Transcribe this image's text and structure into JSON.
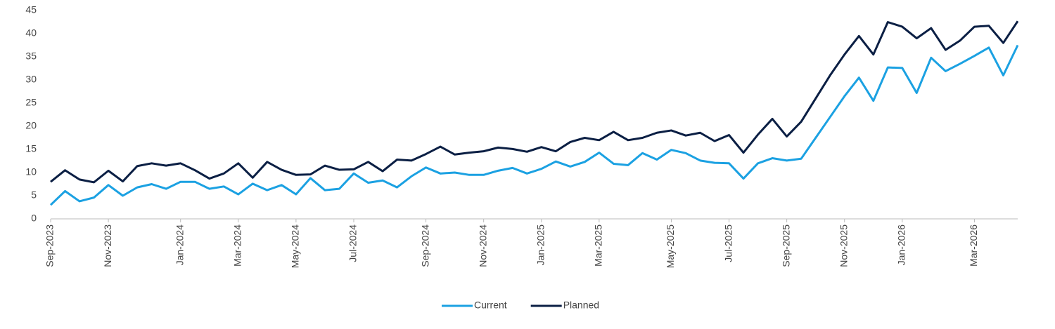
{
  "chart_data": {
    "type": "line",
    "categories": [
      "Sep-2023",
      null,
      null,
      null,
      "Nov-2023",
      null,
      null,
      null,
      null,
      "Jan-2024",
      null,
      null,
      null,
      "Mar-2024",
      null,
      null,
      null,
      "May-2024",
      null,
      null,
      null,
      "Jul-2024",
      null,
      null,
      null,
      null,
      "Sep-2024",
      null,
      null,
      null,
      "Nov-2024",
      null,
      null,
      null,
      "Jan-2025",
      null,
      null,
      null,
      "Mar-2025",
      null,
      null,
      null,
      null,
      "May-2025",
      null,
      null,
      null,
      "Jul-2025",
      null,
      null,
      null,
      "Sep-2025",
      null,
      null,
      null,
      "Nov-2025",
      null,
      null,
      null,
      "Jan-2026",
      null,
      null,
      null,
      null,
      "Mar-2026",
      null,
      null,
      null
    ],
    "series": [
      {
        "name": "Current",
        "color": "#1ba1e2",
        "values": [
          3,
          6,
          3.8,
          4.6,
          7.3,
          5,
          6.8,
          7.5,
          6.5,
          8,
          8,
          6.5,
          7,
          5.3,
          7.6,
          6.2,
          7.3,
          5.3,
          8.8,
          6.2,
          6.5,
          9.8,
          7.8,
          8.3,
          6.8,
          9.2,
          11.1,
          9.8,
          10,
          9.5,
          9.5,
          10.4,
          11,
          9.8,
          10.8,
          12.4,
          11.3,
          12.3,
          14.3,
          11.9,
          11.6,
          14.2,
          12.8,
          14.9,
          14.2,
          12.6,
          12.1,
          12,
          8.7,
          12,
          13.1,
          12.6,
          13,
          17.5,
          22,
          26.5,
          30.5,
          25.5,
          32.7,
          32.6,
          27.2,
          34.8,
          31.9,
          33.5,
          35.2,
          37,
          31,
          37.5
        ]
      },
      {
        "name": "Planned",
        "color": "#0b1f44",
        "values": [
          8,
          10.5,
          8.5,
          7.9,
          10.4,
          8.1,
          11.4,
          12,
          11.5,
          12,
          10.5,
          8.7,
          9.8,
          12,
          8.9,
          12.3,
          10.6,
          9.5,
          9.6,
          11.5,
          10.6,
          10.7,
          12.3,
          10.3,
          12.8,
          12.6,
          14,
          15.6,
          13.9,
          14.3,
          14.6,
          15.4,
          15.1,
          14.5,
          15.5,
          14.6,
          16.6,
          17.5,
          17,
          18.8,
          17,
          17.5,
          18.6,
          19.1,
          18,
          18.6,
          16.8,
          18.1,
          14.3,
          18.2,
          21.6,
          17.8,
          21,
          26,
          31,
          35.5,
          39.5,
          35.5,
          42.5,
          41.5,
          39,
          41.2,
          36.5,
          38.5,
          41.5,
          41.7,
          38,
          42.7
        ]
      }
    ],
    "ylim": [
      0,
      45
    ],
    "yticks": [
      0,
      5,
      10,
      15,
      20,
      25,
      30,
      35,
      40,
      45
    ],
    "grid": false,
    "legend": "bottom"
  }
}
